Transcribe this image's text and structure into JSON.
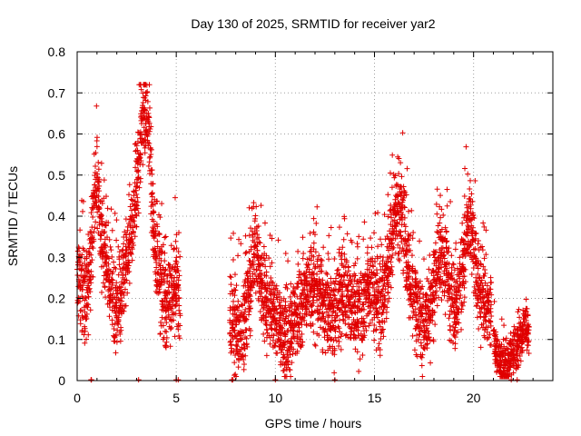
{
  "chart_data": {
    "type": "scatter",
    "title": "Day 130 of 2025, SRMTID for receiver yar2",
    "xlabel": "GPS time / hours",
    "ylabel": "SRMTID / TECUs",
    "xlim": [
      0,
      24
    ],
    "ylim": [
      0,
      0.8
    ],
    "xticks": [
      "0",
      "5",
      "10",
      "15",
      "20"
    ],
    "yticks": [
      "0",
      "0.1",
      "0.2",
      "0.3",
      "0.4",
      "0.5",
      "0.6",
      "0.7",
      "0.8"
    ],
    "grid": true,
    "marker": "plus",
    "color": "#e00000",
    "series": [
      {
        "name": "SRMTID",
        "segments": [
          {
            "x": [
              0.0,
              0.2,
              0.4,
              0.6,
              0.8,
              1.0,
              1.2,
              1.4,
              1.6,
              1.8,
              2.0,
              2.2,
              2.4,
              2.6,
              2.8,
              3.0,
              3.2,
              3.4,
              3.6,
              3.8,
              4.0,
              4.2,
              4.4,
              4.6,
              4.8,
              5.0,
              5.2
            ],
            "y": [
              0.25,
              0.24,
              0.2,
              0.23,
              0.4,
              0.48,
              0.38,
              0.3,
              0.24,
              0.2,
              0.18,
              0.2,
              0.26,
              0.3,
              0.38,
              0.47,
              0.58,
              0.66,
              0.6,
              0.42,
              0.3,
              0.25,
              0.2,
              0.18,
              0.22,
              0.24,
              0.18
            ],
            "spread": 0.085
          },
          {
            "x": [
              7.7,
              7.9,
              8.1,
              8.3,
              8.5,
              8.7,
              8.9,
              9.1,
              9.3,
              9.5,
              9.7,
              9.9,
              10.1,
              10.3,
              10.5,
              10.7,
              10.9,
              11.1,
              11.3,
              11.5,
              11.7,
              11.9,
              12.1,
              12.3,
              12.5,
              12.7,
              12.9,
              13.1,
              13.3,
              13.5,
              13.7,
              13.9,
              14.1,
              14.3,
              14.5,
              14.7,
              14.9,
              15.1,
              15.3,
              15.5,
              15.7,
              15.9,
              16.1,
              16.3,
              16.5,
              16.7,
              16.9,
              17.1,
              17.3,
              17.5,
              17.7,
              17.9,
              18.1,
              18.3,
              18.5,
              18.7,
              18.9,
              19.1,
              19.3,
              19.5,
              19.7,
              19.9,
              20.1,
              20.3,
              20.5,
              20.7,
              20.9
            ],
            "y": [
              0.15,
              0.14,
              0.12,
              0.13,
              0.16,
              0.22,
              0.33,
              0.3,
              0.22,
              0.2,
              0.18,
              0.16,
              0.14,
              0.12,
              0.1,
              0.1,
              0.12,
              0.15,
              0.18,
              0.2,
              0.22,
              0.24,
              0.22,
              0.2,
              0.18,
              0.16,
              0.17,
              0.18,
              0.2,
              0.22,
              0.2,
              0.18,
              0.16,
              0.17,
              0.2,
              0.24,
              0.22,
              0.2,
              0.18,
              0.22,
              0.28,
              0.35,
              0.4,
              0.42,
              0.36,
              0.28,
              0.22,
              0.18,
              0.15,
              0.14,
              0.16,
              0.2,
              0.26,
              0.32,
              0.3,
              0.25,
              0.2,
              0.18,
              0.22,
              0.3,
              0.4,
              0.36,
              0.28,
              0.22,
              0.2,
              0.18,
              0.16
            ],
            "spread": 0.085
          },
          {
            "x": [
              21.0,
              21.2,
              21.4,
              21.6,
              21.8,
              22.0,
              22.2,
              22.4,
              22.6,
              22.8
            ],
            "y": [
              0.09,
              0.06,
              0.04,
              0.03,
              0.04,
              0.06,
              0.08,
              0.1,
              0.13,
              0.12
            ],
            "spread": 0.045
          }
        ],
        "zero_points": [
          0.7,
          0.72,
          3.1,
          5.0,
          5.1,
          7.8,
          7.85,
          10.0,
          13.0,
          21.9,
          22.2
        ]
      }
    ]
  }
}
